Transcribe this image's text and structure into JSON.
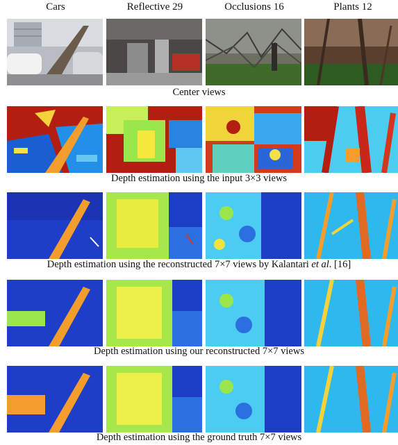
{
  "columns": [
    "Cars",
    "Reflective 29",
    "Occlusions 16",
    "Plants 12"
  ],
  "rows": [
    {
      "caption": "Center views"
    },
    {
      "caption": "Depth estimation using the input 3×3 views"
    },
    {
      "caption_pre": "Depth estimation using the reconstructed 7×7 views by Kalantari ",
      "caption_em": "et al",
      "caption_post": ". [16]"
    },
    {
      "caption": "Depth estimation using our reconstructed 7×7 views"
    },
    {
      "caption": "Depth estimation using the ground truth 7×7 views"
    }
  ]
}
